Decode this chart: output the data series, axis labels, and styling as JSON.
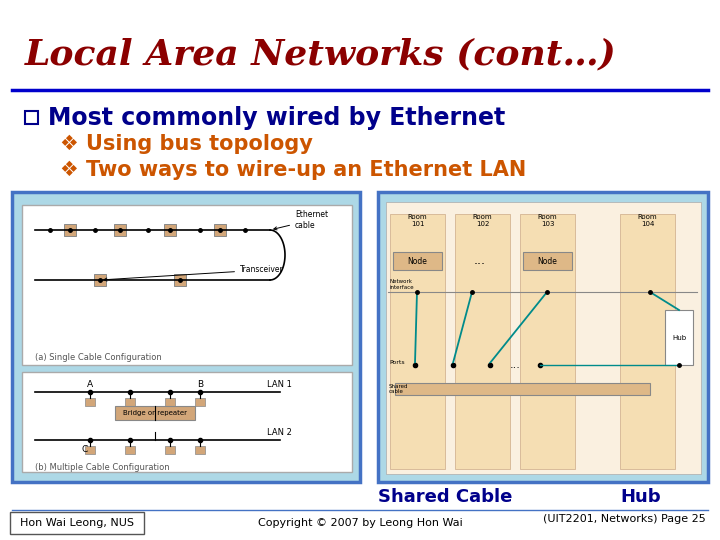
{
  "title": "Local Area Networks (cont…)",
  "title_color": "#8B0000",
  "title_fontsize": 26,
  "title_fontstyle": "italic",
  "title_fontweight": "bold",
  "bg_color": "#FFFFFF",
  "divider_color": "#0000CC",
  "bullet1": "Most commonly wired by Ethernet",
  "bullet1_color": "#00008B",
  "bullet1_fontsize": 17,
  "sub_bullet1": "Using bus topology",
  "sub_bullet2": "Two ways to wire-up an Ethernet LAN",
  "sub_bullet_color": "#CC5500",
  "sub_bullet_fontsize": 15,
  "left_box_color": "#ADD8E6",
  "right_box_color": "#ADD8E6",
  "label_shared": "Shared Cable",
  "label_hub": "Hub",
  "label_shared_color": "#00008B",
  "label_hub_color": "#00008B",
  "label_fontsize": 13,
  "footer_left": "Hon Wai Leong, NUS",
  "footer_center": "Copyright © 2007 by Leong Hon Wai",
  "footer_right": "(UIT2201, Networks) Page 25",
  "footer_fontsize": 8,
  "footer_color": "#000000",
  "box_edge_color": "#4472C4",
  "transceiver_color": "#D2A679",
  "teal_color": "#008B8B"
}
